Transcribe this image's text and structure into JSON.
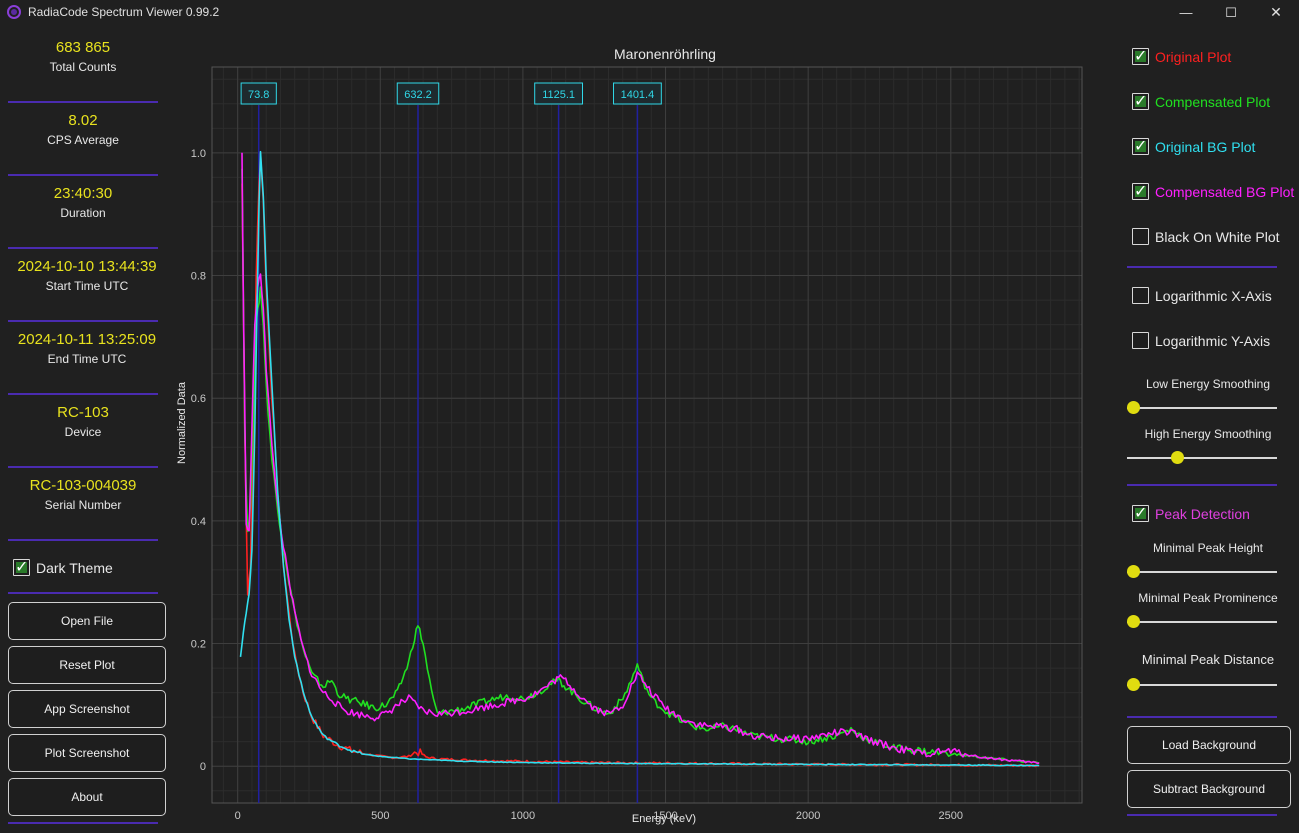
{
  "window": {
    "title": "RadiaCode Spectrum Viewer 0.99.2",
    "min_glyph": "—",
    "max_glyph": "☐",
    "close_glyph": "✕"
  },
  "stats": [
    {
      "value": "683 865",
      "label": "Total Counts"
    },
    {
      "value": "8.02",
      "label": "CPS Average"
    },
    {
      "value": "23:40:30",
      "label": "Duration"
    },
    {
      "value": "2024-10-10 13:44:39",
      "label": "Start Time UTC"
    },
    {
      "value": "2024-10-11 13:25:09",
      "label": "End Time UTC"
    },
    {
      "value": "RC-103",
      "label": "Device"
    },
    {
      "value": "RC-103-004039",
      "label": "Serial Number"
    }
  ],
  "dark_theme": {
    "label": "Dark Theme",
    "checked": true
  },
  "left_buttons": [
    "Open File",
    "Reset Plot",
    "App Screenshot",
    "Plot Screenshot",
    "About"
  ],
  "plot_toggles": [
    {
      "label": "Original Plot",
      "checked": true,
      "color": "#ff2020"
    },
    {
      "label": "Compensated Plot",
      "checked": true,
      "color": "#20e020"
    },
    {
      "label": "Original BG Plot",
      "checked": true,
      "color": "#30e0f0"
    },
    {
      "label": "Compensated BG Plot",
      "checked": true,
      "color": "#ff20ff"
    },
    {
      "label": "Black On White Plot",
      "checked": false,
      "color": "#e8e8e8"
    }
  ],
  "axis_toggles": [
    {
      "label": "Logarithmic X-Axis",
      "checked": false
    },
    {
      "label": "Logarithmic Y-Axis",
      "checked": false
    }
  ],
  "smoothing": [
    {
      "label": "Low Energy Smoothing",
      "value": 0.0
    },
    {
      "label": "High Energy Smoothing",
      "value": 0.32
    }
  ],
  "peak_detection": {
    "label": "Peak Detection",
    "checked": true,
    "color": "#e040e0"
  },
  "peak_sliders": [
    {
      "label": "Minimal Peak Height",
      "value": 0.0
    },
    {
      "label": "Minimal Peak Prominence",
      "value": 0.0
    },
    {
      "label": "Minimal Peak Distance",
      "value": 0.0
    }
  ],
  "right_buttons": [
    "Load Background",
    "Subtract Background"
  ],
  "colors": {
    "accent_separator": "#4a2bb0",
    "stat_value": "#e8e21e",
    "slider_knob": "#e0dc10"
  },
  "chart_data": {
    "type": "line",
    "title": "Maronenröhrling",
    "xlabel": "Energy (keV)",
    "ylabel": "Normalized Data",
    "xlim": [
      -90,
      2960
    ],
    "ylim": [
      -0.06,
      1.14
    ],
    "xticks": [
      0,
      500,
      1000,
      1500,
      2000,
      2500
    ],
    "yticks": [
      0,
      0.2,
      0.4,
      0.6,
      0.8,
      1.0
    ],
    "ytick_labels": [
      "0",
      "0.2",
      "0.4",
      "0.6",
      "0.8",
      "1.0"
    ],
    "grid": true,
    "peaks": [
      {
        "x": 73.8,
        "label": "73.8"
      },
      {
        "x": 632.2,
        "label": "632.2"
      },
      {
        "x": 1125.1,
        "label": "1125.1"
      },
      {
        "x": 1401.4,
        "label": "1401.4"
      }
    ],
    "series": [
      {
        "name": "Original Plot",
        "color": "#ff2020",
        "x": [
          15,
          25,
          35,
          45,
          55,
          65,
          75,
          80,
          90,
          100,
          120,
          140,
          160,
          180,
          200,
          230,
          260,
          300,
          350,
          400,
          450,
          500,
          550,
          600,
          620,
          640,
          660,
          700,
          800,
          1000,
          1200,
          1500,
          2000,
          2500,
          2810
        ],
        "y": [
          0.95,
          0.55,
          0.28,
          0.33,
          0.55,
          0.8,
          0.95,
          1.0,
          0.92,
          0.78,
          0.6,
          0.45,
          0.33,
          0.25,
          0.18,
          0.12,
          0.08,
          0.05,
          0.035,
          0.025,
          0.02,
          0.016,
          0.014,
          0.016,
          0.022,
          0.022,
          0.015,
          0.012,
          0.01,
          0.008,
          0.006,
          0.005,
          0.003,
          0.002,
          0.001
        ]
      },
      {
        "name": "Compensated Plot",
        "color": "#20e020",
        "x": [
          15,
          25,
          35,
          45,
          55,
          65,
          75,
          80,
          90,
          100,
          120,
          140,
          160,
          180,
          200,
          230,
          260,
          300,
          330,
          350,
          380,
          420,
          480,
          520,
          560,
          600,
          620,
          632,
          650,
          680,
          700,
          750,
          800,
          900,
          950,
          1000,
          1050,
          1100,
          1125,
          1150,
          1200,
          1250,
          1300,
          1350,
          1380,
          1401,
          1420,
          1450,
          1500,
          1550,
          1600,
          1650,
          1700,
          1750,
          1800,
          1900,
          2000,
          2100,
          2150,
          2200,
          2300,
          2400,
          2500,
          2600,
          2700,
          2810
        ],
        "y": [
          0.98,
          0.54,
          0.38,
          0.42,
          0.58,
          0.72,
          0.76,
          0.78,
          0.72,
          0.62,
          0.5,
          0.42,
          0.36,
          0.3,
          0.25,
          0.19,
          0.15,
          0.13,
          0.14,
          0.12,
          0.11,
          0.105,
          0.095,
          0.1,
          0.12,
          0.17,
          0.21,
          0.23,
          0.2,
          0.12,
          0.085,
          0.09,
          0.095,
          0.11,
          0.115,
          0.11,
          0.12,
          0.135,
          0.14,
          0.13,
          0.11,
          0.095,
          0.085,
          0.11,
          0.14,
          0.165,
          0.14,
          0.11,
          0.09,
          0.075,
          0.065,
          0.06,
          0.065,
          0.06,
          0.05,
          0.045,
          0.04,
          0.05,
          0.06,
          0.045,
          0.03,
          0.025,
          0.02,
          0.015,
          0.01,
          0.005
        ]
      },
      {
        "name": "Compensated BG Plot",
        "color": "#ff20ff",
        "x": [
          15,
          20,
          30,
          40,
          50,
          60,
          70,
          80,
          90,
          100,
          120,
          140,
          160,
          180,
          200,
          230,
          260,
          300,
          330,
          350,
          380,
          420,
          480,
          520,
          560,
          600,
          650,
          700,
          800,
          900,
          1000,
          1050,
          1100,
          1125,
          1150,
          1200,
          1250,
          1300,
          1350,
          1380,
          1401,
          1420,
          1450,
          1500,
          1550,
          1600,
          1650,
          1700,
          1750,
          1800,
          1900,
          2000,
          2100,
          2150,
          2200,
          2300,
          2400,
          2500,
          2600,
          2700,
          2810
        ],
        "y": [
          1.0,
          0.75,
          0.4,
          0.38,
          0.55,
          0.72,
          0.78,
          0.8,
          0.75,
          0.65,
          0.52,
          0.43,
          0.36,
          0.3,
          0.25,
          0.19,
          0.15,
          0.12,
          0.11,
          0.1,
          0.09,
          0.085,
          0.08,
          0.085,
          0.1,
          0.11,
          0.09,
          0.085,
          0.09,
          0.1,
          0.11,
          0.12,
          0.135,
          0.145,
          0.14,
          0.115,
          0.095,
          0.085,
          0.1,
          0.13,
          0.15,
          0.14,
          0.12,
          0.095,
          0.08,
          0.07,
          0.065,
          0.065,
          0.06,
          0.05,
          0.045,
          0.045,
          0.055,
          0.055,
          0.045,
          0.03,
          0.02,
          0.025,
          0.015,
          0.01,
          0.005
        ]
      },
      {
        "name": "Original BG Plot",
        "color": "#30e0f0",
        "x": [
          10,
          20,
          30,
          40,
          50,
          60,
          70,
          75,
          80,
          90,
          100,
          120,
          140,
          160,
          180,
          200,
          230,
          260,
          300,
          350,
          400,
          450,
          500,
          550,
          600,
          650,
          700,
          800,
          1000,
          1200,
          1500,
          2000,
          2500,
          2810
        ],
        "y": [
          0.18,
          0.22,
          0.25,
          0.28,
          0.35,
          0.55,
          0.8,
          0.92,
          1.0,
          0.93,
          0.8,
          0.62,
          0.45,
          0.33,
          0.24,
          0.18,
          0.12,
          0.08,
          0.05,
          0.035,
          0.025,
          0.019,
          0.016,
          0.014,
          0.012,
          0.011,
          0.01,
          0.008,
          0.006,
          0.005,
          0.004,
          0.003,
          0.002,
          0.001
        ]
      }
    ]
  }
}
